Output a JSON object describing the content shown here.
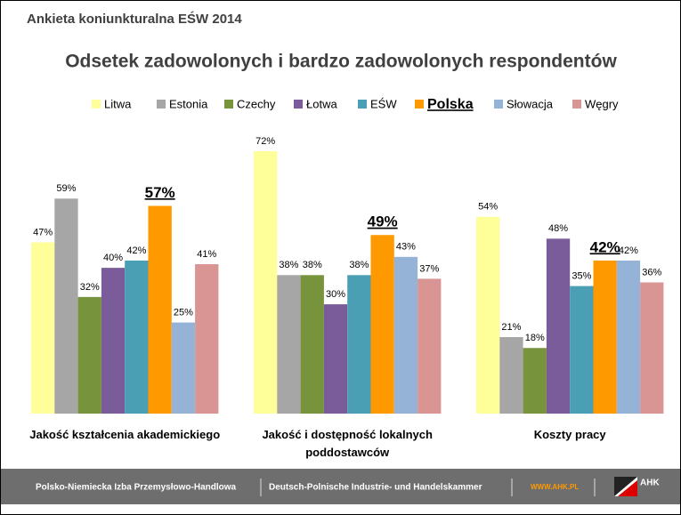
{
  "header": {
    "subtitle": "Ankieta koniunkturalna EŚW 2014"
  },
  "chart_data": {
    "type": "bar",
    "title": "Odsetek zadowolonych i bardzo zadowolonych respondentów",
    "categories": [
      "Jakość kształcenia akademickiego",
      "Jakość i dostępność lokalnych poddostawców",
      "Koszty pracy"
    ],
    "highlight": "Polska",
    "series": [
      {
        "name": "Litwa",
        "color": "#ffff99",
        "values": [
          47,
          72,
          54
        ],
        "value_labels": [
          "47%",
          "72%",
          "54%"
        ]
      },
      {
        "name": "Estonia",
        "color": "#a6a6a6",
        "values": [
          59,
          38,
          21
        ],
        "value_labels": [
          "59%",
          "38%",
          "21%"
        ]
      },
      {
        "name": "Czechy",
        "color": "#77933c",
        "values": [
          32,
          38,
          18
        ],
        "value_labels": [
          "32%",
          "38%",
          "18%"
        ]
      },
      {
        "name": "Łotwa",
        "color": "#7a5c9a",
        "values": [
          40,
          30,
          48
        ],
        "value_labels": [
          "40%",
          "30%",
          "48%"
        ]
      },
      {
        "name": "EŚW",
        "color": "#4a9fb5",
        "values": [
          42,
          38,
          35
        ],
        "value_labels": [
          "42%",
          "38%",
          "35%"
        ]
      },
      {
        "name": "Polska",
        "color": "#ff9900",
        "values": [
          57,
          49,
          42
        ],
        "value_labels": [
          "57%",
          "49%",
          "42%"
        ]
      },
      {
        "name": "Słowacja",
        "color": "#95b3d7",
        "values": [
          25,
          43,
          42
        ],
        "value_labels": [
          "25%",
          "43%",
          "42%"
        ]
      },
      {
        "name": "Węgry",
        "color": "#d99594",
        "values": [
          41,
          37,
          36
        ],
        "value_labels": [
          "41%",
          "37%",
          "36%"
        ]
      }
    ]
  },
  "footer": {
    "left": "Polsko-Niemiecka Izba Przemysłowo-Handlowa",
    "middle": "Deutsch-Polnische Industrie- und Handelskammer",
    "url": "WWW.AHK.PL",
    "logo": "AHK"
  }
}
